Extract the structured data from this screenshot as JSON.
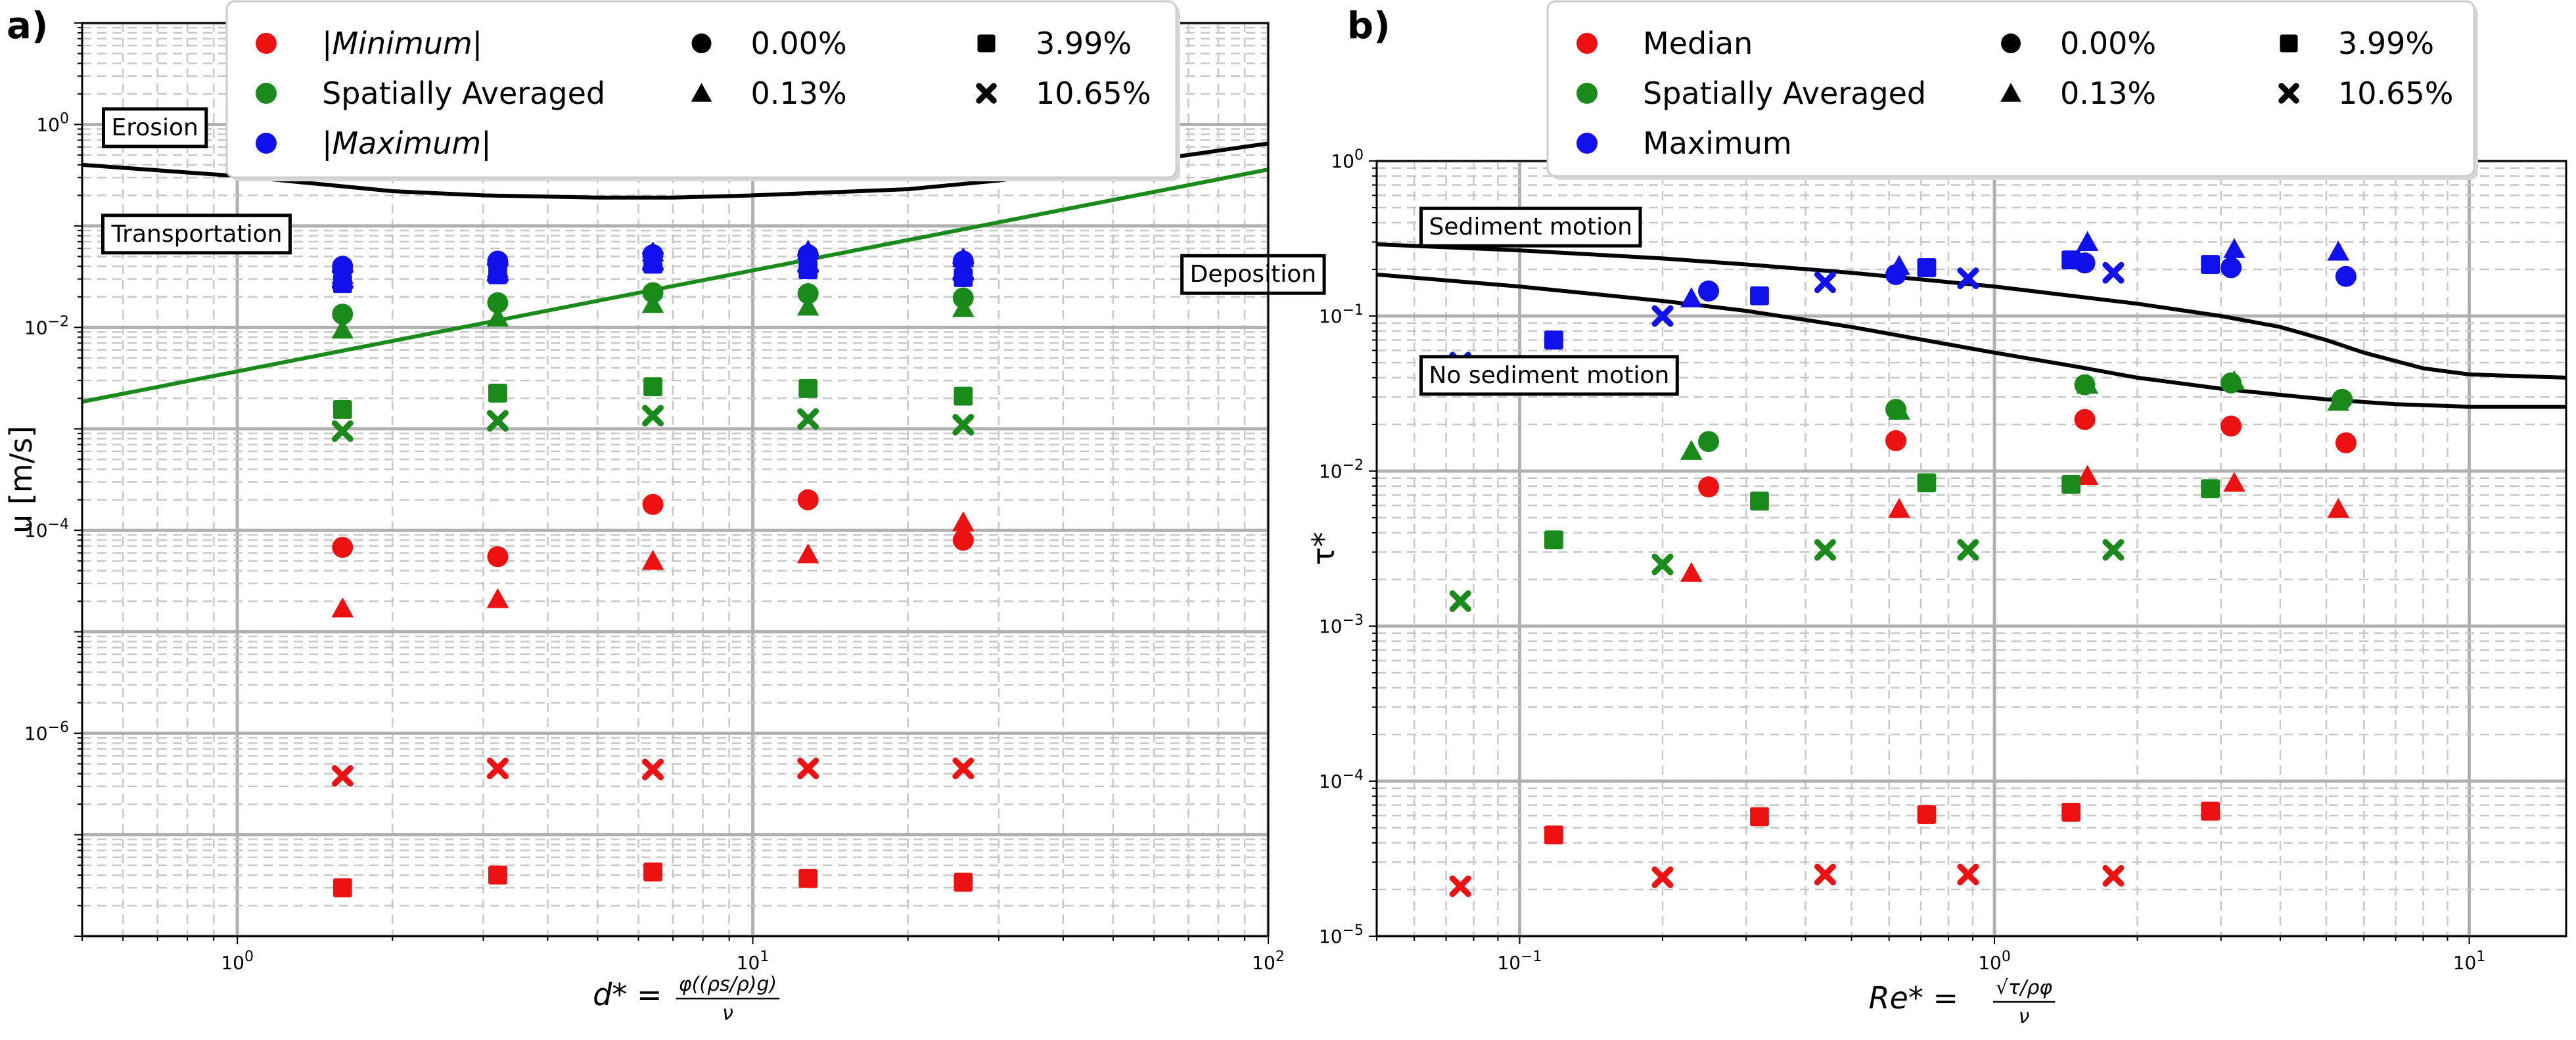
{
  "figure": {
    "panel_labels": [
      "a)",
      "b)"
    ]
  },
  "chart_data": [
    {
      "panel": "a)",
      "type": "scatter",
      "xscale": "log",
      "yscale": "log",
      "xlim": [
        0.5,
        100
      ],
      "ylim": [
        1e-08,
        10
      ],
      "xlabel": "d* = φ((ρs/ρ)g) / ν",
      "xlabel_parts": {
        "lhs": "d*",
        "eq": "=",
        "numerator": "φ((ρs/ρ)g)",
        "denominator": "ν"
      },
      "ylabel": "u [m/s]",
      "x_ticks": [
        {
          "value": 1,
          "base": "10",
          "exp": "0"
        },
        {
          "value": 10,
          "base": "10",
          "exp": "1"
        },
        {
          "value": 100,
          "base": "10",
          "exp": "2"
        }
      ],
      "y_ticks": [
        {
          "value": 1e-06,
          "base": "10",
          "exp": "−6"
        },
        {
          "value": 0.0001,
          "base": "10",
          "exp": "−4"
        },
        {
          "value": 0.01,
          "base": "10",
          "exp": "−2"
        },
        {
          "value": 1,
          "base": "10",
          "exp": "0"
        }
      ],
      "legend": {
        "location": "top",
        "color_entries": [
          {
            "label": "|Minimum|",
            "italic": true,
            "color": "#ee1111"
          },
          {
            "label": "Spatially Averaged",
            "italic": false,
            "color": "#1a8a1a"
          },
          {
            "label": "|Maximum|",
            "italic": true,
            "color": "#1111ee"
          }
        ],
        "marker_entries": [
          {
            "label": "0.00%",
            "marker": "circle"
          },
          {
            "label": "0.13%",
            "marker": "triangle"
          },
          {
            "label": "3.99%",
            "marker": "square"
          },
          {
            "label": "10.65%",
            "marker": "x"
          }
        ]
      },
      "annotations": [
        {
          "text": "Erosion",
          "x": 0.55,
          "y": 0.95
        },
        {
          "text": "Transportation",
          "x": 0.55,
          "y": 0.085
        },
        {
          "text": "Deposition",
          "x": 68,
          "y": 0.034
        }
      ],
      "lines": [
        {
          "name": "erosion-threshold",
          "color": "#000000",
          "x": [
            0.5,
            1,
            2,
            3,
            5,
            7,
            10,
            20,
            30,
            50,
            70,
            100
          ],
          "y": [
            0.4,
            0.31,
            0.22,
            0.2,
            0.19,
            0.19,
            0.2,
            0.23,
            0.28,
            0.4,
            0.5,
            0.65
          ]
        },
        {
          "name": "deposition-threshold",
          "color": "#1a8a1a",
          "x": [
            0.5,
            100
          ],
          "y": [
            0.00185,
            0.36
          ]
        }
      ],
      "series": [
        {
          "name": "|Minimum| 0.00%",
          "color": "#ee1111",
          "marker": "circle",
          "x": [
            1.6,
            3.2,
            6.4,
            12.8,
            25.6
          ],
          "y": [
            6.8e-05,
            5.5e-05,
            0.00018,
            0.0002,
            8e-05
          ]
        },
        {
          "name": "|Minimum| 0.13%",
          "color": "#ee1111",
          "marker": "triangle",
          "x": [
            1.6,
            3.2,
            6.4,
            12.8,
            25.6
          ],
          "y": [
            1.7e-05,
            2.1e-05,
            5e-05,
            5.8e-05,
            0.00012
          ]
        },
        {
          "name": "|Minimum| 3.99%",
          "color": "#ee1111",
          "marker": "square",
          "x": [
            1.6,
            3.2,
            6.4,
            12.8,
            25.6
          ],
          "y": [
            3e-08,
            4e-08,
            4.3e-08,
            3.7e-08,
            3.4e-08
          ]
        },
        {
          "name": "|Minimum| 10.65%",
          "color": "#ee1111",
          "marker": "x",
          "x": [
            1.6,
            3.2,
            6.4,
            12.8,
            25.6
          ],
          "y": [
            3.8e-07,
            4.5e-07,
            4.4e-07,
            4.5e-07,
            4.5e-07
          ]
        },
        {
          "name": "Spatially Averaged 0.00%",
          "color": "#1a8a1a",
          "marker": "circle",
          "x": [
            1.6,
            3.2,
            6.4,
            12.8,
            25.6
          ],
          "y": [
            0.0135,
            0.0175,
            0.022,
            0.0215,
            0.0195
          ]
        },
        {
          "name": "Spatially Averaged 0.13%",
          "color": "#1a8a1a",
          "marker": "triangle",
          "x": [
            1.6,
            3.2,
            6.4,
            12.8,
            25.6
          ],
          "y": [
            0.0095,
            0.0125,
            0.017,
            0.016,
            0.0155
          ]
        },
        {
          "name": "Spatially Averaged 3.99%",
          "color": "#1a8a1a",
          "marker": "square",
          "x": [
            1.6,
            3.2,
            6.4,
            12.8,
            25.6
          ],
          "y": [
            0.00155,
            0.00225,
            0.0026,
            0.0025,
            0.0021
          ]
        },
        {
          "name": "Spatially Averaged 10.65%",
          "color": "#1a8a1a",
          "marker": "x",
          "x": [
            1.6,
            3.2,
            6.4,
            12.8,
            25.6
          ],
          "y": [
            0.00095,
            0.0012,
            0.00135,
            0.00125,
            0.0011
          ]
        },
        {
          "name": "|Maximum| 0.00%",
          "color": "#1111ee",
          "marker": "circle",
          "x": [
            1.6,
            3.2,
            6.4,
            12.8,
            25.6
          ],
          "y": [
            0.04,
            0.045,
            0.052,
            0.052,
            0.045
          ]
        },
        {
          "name": "|Maximum| 0.13%",
          "color": "#1111ee",
          "marker": "triangle",
          "x": [
            1.6,
            3.2,
            6.4,
            12.8,
            25.6
          ],
          "y": [
            0.033,
            0.038,
            0.055,
            0.057,
            0.048
          ]
        },
        {
          "name": "|Maximum| 3.99%",
          "color": "#1111ee",
          "marker": "square",
          "x": [
            1.6,
            3.2,
            6.4,
            12.8,
            25.6
          ],
          "y": [
            0.027,
            0.033,
            0.042,
            0.037,
            0.031
          ]
        },
        {
          "name": "|Maximum| 10.65%",
          "color": "#1111ee",
          "marker": "x",
          "x": [
            1.6,
            3.2,
            6.4,
            12.8,
            25.6
          ],
          "y": [
            0.03,
            0.035,
            0.045,
            0.043,
            0.036
          ]
        }
      ]
    },
    {
      "panel": "b)",
      "type": "scatter",
      "xscale": "log",
      "yscale": "log",
      "xlim": [
        0.05,
        16
      ],
      "ylim": [
        1e-05,
        1
      ],
      "xlabel": "Re* = √(τ/ρ)φ / ν",
      "xlabel_parts": {
        "lhs": "Re*",
        "eq": "=",
        "numerator": "√τ/ρφ",
        "denominator": "ν"
      },
      "ylabel": "τ*",
      "x_ticks": [
        {
          "value": 0.1,
          "base": "10",
          "exp": "−1"
        },
        {
          "value": 1,
          "base": "10",
          "exp": "0"
        },
        {
          "value": 10,
          "base": "10",
          "exp": "1"
        }
      ],
      "y_ticks": [
        {
          "value": 1e-05,
          "base": "10",
          "exp": "−5"
        },
        {
          "value": 0.0001,
          "base": "10",
          "exp": "−4"
        },
        {
          "value": 0.001,
          "base": "10",
          "exp": "−3"
        },
        {
          "value": 0.01,
          "base": "10",
          "exp": "−2"
        },
        {
          "value": 0.1,
          "base": "10",
          "exp": "−1"
        },
        {
          "value": 1,
          "base": "10",
          "exp": "0"
        }
      ],
      "legend": {
        "location": "top",
        "color_entries": [
          {
            "label": "Median",
            "italic": false,
            "color": "#ee1111"
          },
          {
            "label": "Spatially Averaged",
            "italic": false,
            "color": "#1a8a1a"
          },
          {
            "label": "Maximum",
            "italic": false,
            "color": "#1111ee"
          }
        ],
        "marker_entries": [
          {
            "label": "0.00%",
            "marker": "circle"
          },
          {
            "label": "0.13%",
            "marker": "triangle"
          },
          {
            "label": "3.99%",
            "marker": "square"
          },
          {
            "label": "10.65%",
            "marker": "x"
          }
        ]
      },
      "annotations": [
        {
          "text": "Sediment motion",
          "x": 0.062,
          "y": 0.38
        },
        {
          "text": "No sediment motion",
          "x": 0.062,
          "y": 0.042
        }
      ],
      "lines": [
        {
          "name": "upper-threshold",
          "color": "#000000",
          "x": [
            0.05,
            0.1,
            0.2,
            0.3,
            0.5,
            1,
            2,
            3,
            4,
            5,
            6,
            8,
            10,
            16
          ],
          "y": [
            0.29,
            0.265,
            0.235,
            0.215,
            0.19,
            0.155,
            0.12,
            0.1,
            0.085,
            0.07,
            0.058,
            0.046,
            0.042,
            0.04
          ]
        },
        {
          "name": "lower-threshold",
          "color": "#000000",
          "x": [
            0.05,
            0.1,
            0.2,
            0.3,
            0.5,
            1,
            1.5,
            2,
            3,
            4,
            5,
            7,
            10,
            16
          ],
          "y": [
            0.185,
            0.155,
            0.125,
            0.108,
            0.085,
            0.058,
            0.047,
            0.04,
            0.034,
            0.031,
            0.029,
            0.027,
            0.026,
            0.026
          ]
        }
      ],
      "series": [
        {
          "name": "Median 0.00%",
          "color": "#ee1111",
          "marker": "circle",
          "x": [
            0.25,
            0.62,
            1.55,
            3.15,
            5.5
          ],
          "y": [
            0.0079,
            0.0157,
            0.0215,
            0.0195,
            0.0152
          ]
        },
        {
          "name": "Median 0.13%",
          "color": "#ee1111",
          "marker": "triangle",
          "x": [
            0.23,
            0.63,
            1.57,
            3.2,
            5.3
          ],
          "y": [
            0.0022,
            0.0057,
            0.0093,
            0.0084,
            0.0057
          ]
        },
        {
          "name": "Median 3.99%",
          "color": "#ee1111",
          "marker": "square",
          "x": [
            0.118,
            0.32,
            0.72,
            1.45,
            2.85
          ],
          "y": [
            4.5e-05,
            5.9e-05,
            6.1e-05,
            6.3e-05,
            6.4e-05
          ]
        },
        {
          "name": "Median 10.65%",
          "color": "#ee1111",
          "marker": "x",
          "x": [
            0.075,
            0.2,
            0.44,
            0.88,
            1.78
          ],
          "y": [
            2.1e-05,
            2.4e-05,
            2.5e-05,
            2.5e-05,
            2.45e-05
          ]
        },
        {
          "name": "Spatially Averaged 0.00%",
          "color": "#1a8a1a",
          "marker": "circle",
          "x": [
            0.25,
            0.62,
            1.55,
            3.15,
            5.4
          ],
          "y": [
            0.0155,
            0.025,
            0.036,
            0.037,
            0.029
          ]
        },
        {
          "name": "Spatially Averaged 0.13%",
          "color": "#1a8a1a",
          "marker": "triangle",
          "x": [
            0.23,
            0.63,
            1.57,
            3.2,
            5.3
          ],
          "y": [
            0.0135,
            0.0245,
            0.036,
            0.038,
            0.028
          ]
        },
        {
          "name": "Spatially Averaged 3.99%",
          "color": "#1a8a1a",
          "marker": "square",
          "x": [
            0.118,
            0.32,
            0.72,
            1.45,
            2.85
          ],
          "y": [
            0.0036,
            0.0064,
            0.0084,
            0.0082,
            0.0077
          ]
        },
        {
          "name": "Spatially Averaged 10.65%",
          "color": "#1a8a1a",
          "marker": "x",
          "x": [
            0.075,
            0.2,
            0.44,
            0.88,
            1.78
          ],
          "y": [
            0.00145,
            0.0025,
            0.0031,
            0.0031,
            0.0031
          ]
        },
        {
          "name": "Maximum 0.00%",
          "color": "#1111ee",
          "marker": "circle",
          "x": [
            0.25,
            0.62,
            1.55,
            3.15,
            5.5
          ],
          "y": [
            0.145,
            0.185,
            0.22,
            0.205,
            0.18
          ]
        },
        {
          "name": "Maximum 0.13%",
          "color": "#1111ee",
          "marker": "triangle",
          "x": [
            0.23,
            0.63,
            1.57,
            3.2,
            5.3
          ],
          "y": [
            0.13,
            0.21,
            0.3,
            0.27,
            0.26
          ]
        },
        {
          "name": "Maximum 3.99%",
          "color": "#1111ee",
          "marker": "square",
          "x": [
            0.118,
            0.32,
            0.72,
            1.45,
            2.85
          ],
          "y": [
            0.07,
            0.135,
            0.205,
            0.23,
            0.215
          ]
        },
        {
          "name": "Maximum 10.65%",
          "color": "#1111ee",
          "marker": "x",
          "x": [
            0.075,
            0.2,
            0.44,
            0.88,
            1.78
          ],
          "y": [
            0.05,
            0.1,
            0.165,
            0.175,
            0.19
          ]
        }
      ]
    }
  ]
}
